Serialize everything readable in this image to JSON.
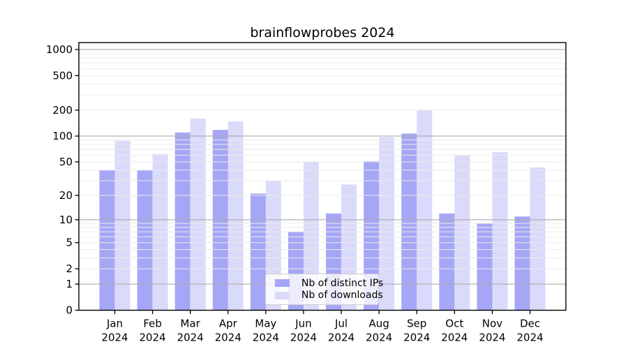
{
  "chart_data": {
    "type": "bar",
    "title": "brainflowprobes 2024",
    "categories": [
      "Jan",
      "Feb",
      "Mar",
      "Apr",
      "May",
      "Jun",
      "Jul",
      "Aug",
      "Sep",
      "Oct",
      "Nov",
      "Dec"
    ],
    "x_year_label": "2024",
    "series": [
      {
        "name": "Nb of distinct IPs",
        "color": "#a6a6f6",
        "values": [
          40,
          40,
          110,
          118,
          21,
          7,
          12,
          51,
          107,
          12,
          9,
          11
        ]
      },
      {
        "name": "Nb of downloads",
        "color": "#dadafa",
        "values": [
          88,
          62,
          160,
          148,
          30,
          50,
          27,
          97,
          200,
          60,
          65,
          43
        ]
      }
    ],
    "y_scale": "log10(value+1)",
    "y_tick_values": [
      0,
      1,
      2,
      5,
      10,
      20,
      50,
      100,
      200,
      500,
      1000
    ],
    "y_major_gridline_values": [
      1,
      10,
      100,
      1000
    ],
    "ylim": [
      0,
      1200
    ],
    "grid": true,
    "legend_position": "lower center"
  },
  "colors": {
    "bar_distinct_ips": "#a6a6f6",
    "bar_downloads": "#dadafa",
    "grid_major": "#ababab",
    "grid_minor": "#ebebeb",
    "spine": "#000000",
    "background": "#ffffff"
  }
}
